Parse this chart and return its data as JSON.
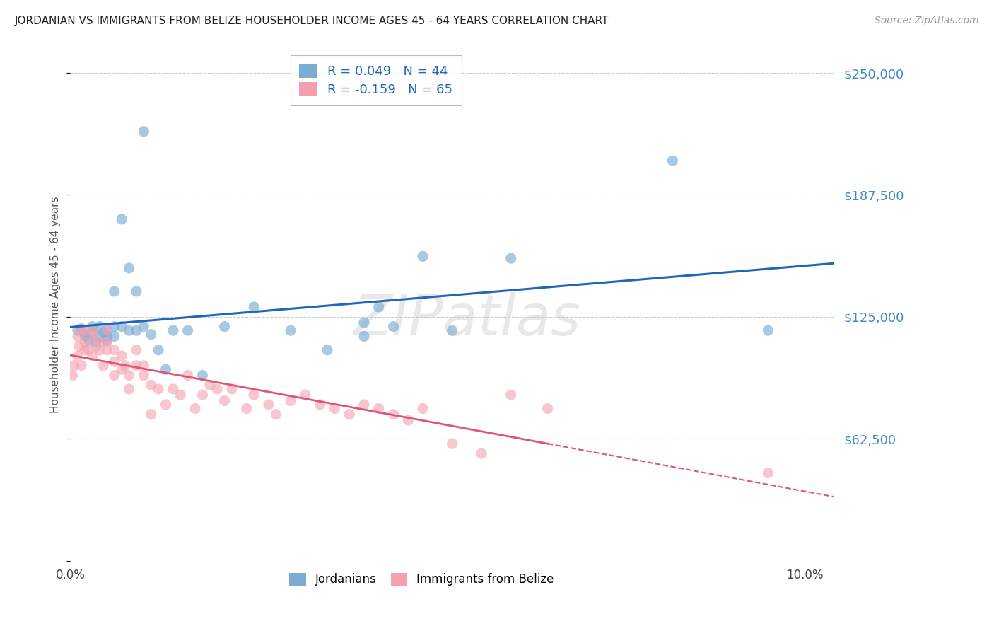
{
  "title": "JORDANIAN VS IMMIGRANTS FROM BELIZE HOUSEHOLDER INCOME AGES 45 - 64 YEARS CORRELATION CHART",
  "source": "Source: ZipAtlas.com",
  "ylabel": "Householder Income Ages 45 - 64 years",
  "x_min": 0.0,
  "x_max": 0.104,
  "y_min": 0,
  "y_max": 262500,
  "yticks": [
    0,
    62500,
    125000,
    187500,
    250000
  ],
  "ytick_labels": [
    "",
    "$62,500",
    "$125,000",
    "$187,500",
    "$250,000"
  ],
  "xticks": [
    0.0,
    0.02,
    0.04,
    0.06,
    0.08,
    0.1
  ],
  "xtick_labels": [
    "0.0%",
    "",
    "",
    "",
    "",
    "10.0%"
  ],
  "r_jordanian": 0.049,
  "n_jordanian": 44,
  "r_belize": -0.159,
  "n_belize": 65,
  "color_jordanian": "#7BADD4",
  "color_belize": "#F4A0B0",
  "color_jordanian_line": "#2266BB",
  "color_belize_line": "#DD5577",
  "jordanian_x": [
    0.001,
    0.0015,
    0.002,
    0.002,
    0.0025,
    0.003,
    0.003,
    0.0035,
    0.004,
    0.004,
    0.0045,
    0.005,
    0.005,
    0.005,
    0.006,
    0.006,
    0.006,
    0.007,
    0.007,
    0.008,
    0.008,
    0.009,
    0.009,
    0.01,
    0.01,
    0.011,
    0.012,
    0.013,
    0.014,
    0.016,
    0.018,
    0.021,
    0.025,
    0.03,
    0.035,
    0.04,
    0.04,
    0.042,
    0.044,
    0.048,
    0.052,
    0.06,
    0.082,
    0.095
  ],
  "jordanian_y": [
    118000,
    119000,
    115000,
    116000,
    113000,
    117000,
    120000,
    112000,
    115000,
    120000,
    117000,
    115000,
    118000,
    113000,
    120000,
    115000,
    138000,
    120000,
    175000,
    118000,
    150000,
    118000,
    138000,
    120000,
    220000,
    116000,
    108000,
    98000,
    118000,
    118000,
    95000,
    120000,
    130000,
    118000,
    108000,
    122000,
    115000,
    130000,
    120000,
    156000,
    118000,
    155000,
    205000,
    118000
  ],
  "belize_x": [
    0.0003,
    0.0005,
    0.001,
    0.001,
    0.0012,
    0.0015,
    0.0015,
    0.002,
    0.002,
    0.002,
    0.0025,
    0.003,
    0.003,
    0.003,
    0.0035,
    0.004,
    0.004,
    0.0045,
    0.005,
    0.005,
    0.005,
    0.006,
    0.006,
    0.006,
    0.007,
    0.007,
    0.0075,
    0.008,
    0.008,
    0.009,
    0.009,
    0.01,
    0.01,
    0.011,
    0.011,
    0.012,
    0.013,
    0.014,
    0.015,
    0.016,
    0.017,
    0.018,
    0.019,
    0.02,
    0.021,
    0.022,
    0.024,
    0.025,
    0.027,
    0.028,
    0.03,
    0.032,
    0.034,
    0.036,
    0.038,
    0.04,
    0.042,
    0.044,
    0.046,
    0.048,
    0.052,
    0.056,
    0.06,
    0.065,
    0.095
  ],
  "belize_y": [
    95000,
    100000,
    115000,
    105000,
    110000,
    118000,
    100000,
    112000,
    118000,
    108000,
    108000,
    115000,
    118000,
    105000,
    110000,
    112000,
    108000,
    100000,
    108000,
    118000,
    112000,
    95000,
    102000,
    108000,
    98000,
    105000,
    100000,
    95000,
    88000,
    100000,
    108000,
    95000,
    100000,
    90000,
    75000,
    88000,
    80000,
    88000,
    85000,
    95000,
    78000,
    85000,
    90000,
    88000,
    82000,
    88000,
    78000,
    85000,
    80000,
    75000,
    82000,
    85000,
    80000,
    78000,
    75000,
    80000,
    78000,
    75000,
    72000,
    78000,
    60000,
    55000,
    85000,
    78000,
    45000
  ]
}
